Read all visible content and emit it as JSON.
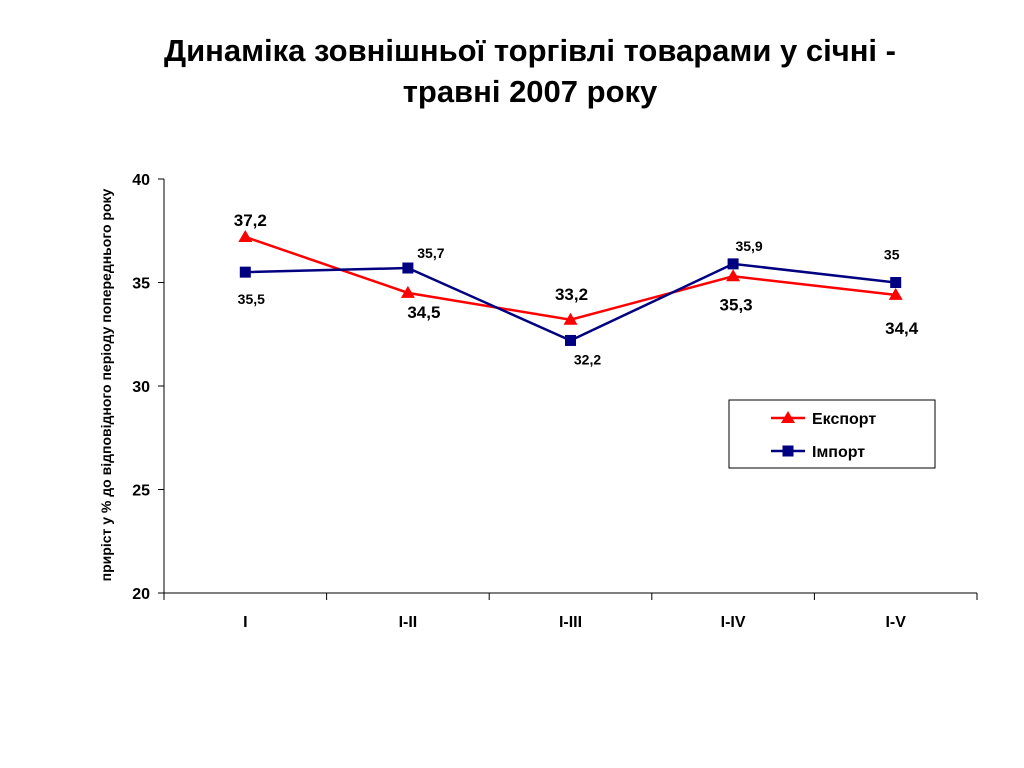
{
  "chart_data": {
    "type": "line",
    "title_line1": "Динаміка зовнішньої торгівлі товарами у січні -",
    "title_line2": "травні 2007 року",
    "ylabel": "приріст у % до відповідного періоду попереднього року",
    "xlabel": "",
    "categories": [
      "I",
      "I-II",
      "I-III",
      "I-IV",
      "I-V"
    ],
    "ylim": [
      20,
      40
    ],
    "yticks": [
      "20",
      "25",
      "30",
      "35",
      "40"
    ],
    "grid": false,
    "legend_position": "right",
    "series": [
      {
        "name": "Експорт",
        "values": [
          37.2,
          34.5,
          33.2,
          35.3,
          34.4
        ],
        "labels": [
          "37,2",
          "34,5",
          "33,2",
          "35,3",
          "34,4"
        ],
        "color": "#ff0000",
        "marker": "triangle"
      },
      {
        "name": "Імпорт",
        "values": [
          35.5,
          35.7,
          32.2,
          35.9,
          35.0
        ],
        "labels": [
          "35,5",
          "35,7",
          "32,2",
          "35,9",
          "35"
        ],
        "color": "#000080",
        "marker": "square"
      }
    ]
  }
}
